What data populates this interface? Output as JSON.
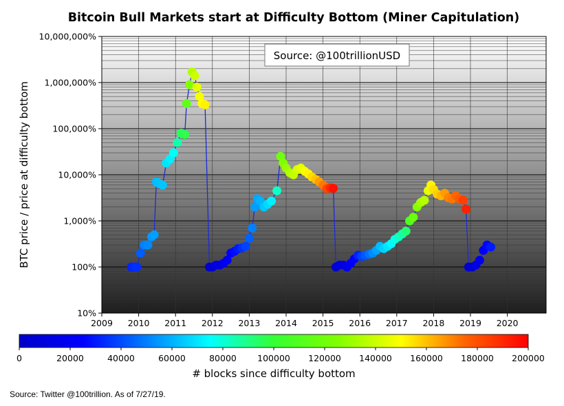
{
  "chart_data": {
    "type": "scatter",
    "title": "Bitcoin Bull Markets start at Difficulty Bottom (Miner Capitulation)",
    "annotation": "Source: @100trillionUSD",
    "ylabel": "BTC price / price at difficulty bottom",
    "xlabel": "",
    "y_scale": "log",
    "ylim": [
      10,
      10000000
    ],
    "xlim": [
      2009,
      2021
    ],
    "grid": true,
    "x_ticks": [
      "2009",
      "2010",
      "2011",
      "2012",
      "2013",
      "2014",
      "2015",
      "2016",
      "2017",
      "2018",
      "2019",
      "2020"
    ],
    "y_ticks": [
      {
        "value": 10,
        "label": "10%"
      },
      {
        "value": 100,
        "label": "100%"
      },
      {
        "value": 1000,
        "label": "1,000%"
      },
      {
        "value": 10000,
        "label": "10,000%"
      },
      {
        "value": 100000,
        "label": "100,000%"
      },
      {
        "value": 1000000,
        "label": "1,000,000%"
      },
      {
        "value": 10000000,
        "label": "10,000,000%"
      }
    ],
    "colorbar": {
      "label": "# blocks since difficulty bottom",
      "min": 0,
      "max": 200000,
      "ticks": [
        "0",
        "20000",
        "40000",
        "60000",
        "80000",
        "100000",
        "120000",
        "140000",
        "160000",
        "180000",
        "200000"
      ]
    },
    "series": [
      {
        "points": [
          [
            2009.8,
            100,
            32000
          ],
          [
            2009.88,
            100,
            33000
          ],
          [
            2009.95,
            100,
            34000
          ],
          [
            2010.05,
            200,
            43000
          ],
          [
            2010.15,
            300,
            50000
          ],
          [
            2010.25,
            300,
            52000
          ],
          [
            2010.35,
            450,
            55000
          ],
          [
            2010.42,
            500,
            56000
          ],
          [
            2010.48,
            7000,
            62000
          ],
          [
            2010.55,
            6500,
            63000
          ],
          [
            2010.65,
            6000,
            64000
          ],
          [
            2010.75,
            18000,
            70000
          ],
          [
            2010.85,
            22000,
            72000
          ],
          [
            2010.95,
            30000,
            76000
          ],
          [
            2011.05,
            50000,
            85000
          ],
          [
            2011.15,
            80000,
            95000
          ],
          [
            2011.25,
            75000,
            97000
          ],
          [
            2011.3,
            350000,
            115000
          ],
          [
            2011.38,
            900000,
            125000
          ],
          [
            2011.45,
            1700000,
            135000
          ],
          [
            2011.52,
            1400000,
            140000
          ],
          [
            2011.58,
            800000,
            145000
          ],
          [
            2011.65,
            500000,
            148000
          ],
          [
            2011.72,
            350000,
            150000
          ],
          [
            2011.8,
            330000,
            152000
          ],
          [
            2011.92,
            100,
            2000
          ],
          [
            2012.0,
            100,
            6000
          ],
          [
            2012.1,
            110,
            9000
          ],
          [
            2012.2,
            110,
            12000
          ],
          [
            2012.3,
            120,
            16000
          ],
          [
            2012.4,
            140,
            20000
          ],
          [
            2012.5,
            200,
            24000
          ],
          [
            2012.6,
            220,
            27000
          ],
          [
            2012.7,
            250,
            30000
          ],
          [
            2012.8,
            260,
            34000
          ],
          [
            2012.9,
            280,
            38000
          ],
          [
            2013.0,
            420,
            44000
          ],
          [
            2013.08,
            700,
            50000
          ],
          [
            2013.15,
            2000,
            56000
          ],
          [
            2013.22,
            3000,
            58000
          ],
          [
            2013.3,
            2700,
            60000
          ],
          [
            2013.4,
            2000,
            64000
          ],
          [
            2013.5,
            2300,
            68000
          ],
          [
            2013.6,
            2700,
            72000
          ],
          [
            2013.75,
            4500,
            82000
          ],
          [
            2013.85,
            25000,
            120000
          ],
          [
            2013.92,
            18000,
            125000
          ],
          [
            2014.0,
            14000,
            130000
          ],
          [
            2014.1,
            11000,
            135000
          ],
          [
            2014.2,
            10000,
            138000
          ],
          [
            2014.3,
            13000,
            142000
          ],
          [
            2014.4,
            14000,
            145000
          ],
          [
            2014.5,
            12000,
            148000
          ],
          [
            2014.6,
            10500,
            152000
          ],
          [
            2014.7,
            9000,
            156000
          ],
          [
            2014.8,
            8000,
            160000
          ],
          [
            2014.9,
            7000,
            166000
          ],
          [
            2015.0,
            6000,
            172000
          ],
          [
            2015.1,
            5000,
            182000
          ],
          [
            2015.2,
            5200,
            190000
          ],
          [
            2015.28,
            5100,
            196000
          ],
          [
            2015.35,
            100,
            4000
          ],
          [
            2015.45,
            110,
            8000
          ],
          [
            2015.55,
            110,
            12000
          ],
          [
            2015.65,
            100,
            16000
          ],
          [
            2015.75,
            120,
            20000
          ],
          [
            2015.85,
            150,
            25000
          ],
          [
            2015.95,
            180,
            32000
          ],
          [
            2016.05,
            170,
            38000
          ],
          [
            2016.15,
            180,
            42000
          ],
          [
            2016.25,
            190,
            47000
          ],
          [
            2016.35,
            200,
            52000
          ],
          [
            2016.45,
            230,
            57000
          ],
          [
            2016.55,
            280,
            62000
          ],
          [
            2016.65,
            250,
            66000
          ],
          [
            2016.75,
            280,
            70000
          ],
          [
            2016.85,
            320,
            74000
          ],
          [
            2016.95,
            400,
            78000
          ],
          [
            2017.05,
            450,
            82000
          ],
          [
            2017.15,
            520,
            86000
          ],
          [
            2017.25,
            600,
            92000
          ],
          [
            2017.35,
            1000,
            110000
          ],
          [
            2017.45,
            1200,
            118000
          ],
          [
            2017.55,
            2000,
            126000
          ],
          [
            2017.65,
            2500,
            132000
          ],
          [
            2017.75,
            2800,
            136000
          ],
          [
            2017.85,
            4500,
            145000
          ],
          [
            2017.93,
            6000,
            152000
          ],
          [
            2018.0,
            4800,
            155000
          ],
          [
            2018.1,
            3800,
            158000
          ],
          [
            2018.2,
            3500,
            162000
          ],
          [
            2018.3,
            4000,
            166000
          ],
          [
            2018.4,
            3200,
            170000
          ],
          [
            2018.5,
            3000,
            172000
          ],
          [
            2018.6,
            3500,
            175000
          ],
          [
            2018.7,
            3000,
            178000
          ],
          [
            2018.8,
            2800,
            184000
          ],
          [
            2018.88,
            1800,
            192000
          ],
          [
            2018.95,
            100,
            3000
          ],
          [
            2019.05,
            100,
            7000
          ],
          [
            2019.15,
            110,
            11000
          ],
          [
            2019.25,
            140,
            15000
          ],
          [
            2019.35,
            230,
            20000
          ],
          [
            2019.45,
            300,
            26000
          ],
          [
            2019.55,
            270,
            30000
          ]
        ]
      }
    ]
  },
  "footnote": "Source: Twitter @100trillion. As of 7/27/19."
}
